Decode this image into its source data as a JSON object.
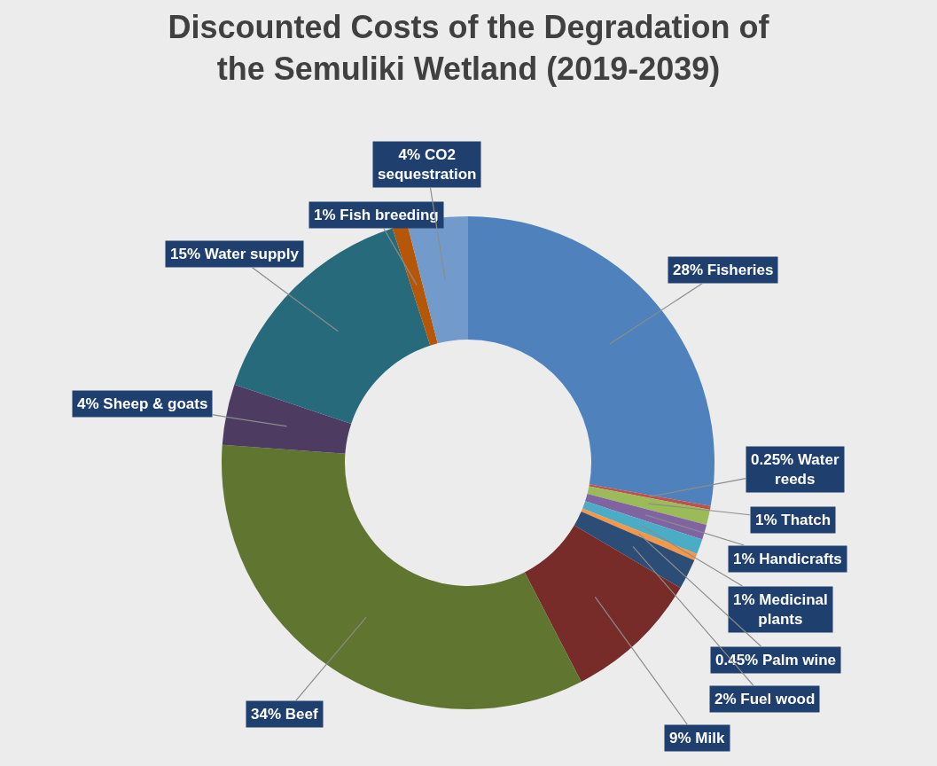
{
  "chart_data": {
    "type": "donut",
    "title": "Discounted Costs of the Degradation of the Semuliki Wetland (2019-2039)",
    "categories": [
      "Fisheries",
      "Water reeds",
      "Thatch",
      "Handicrafts",
      "Medicinal plants",
      "Palm wine",
      "Fuel wood",
      "Milk",
      "Beef",
      "Sheep & goats",
      "Water supply",
      "Fish breeding",
      "CO2 sequestration"
    ],
    "values": [
      28,
      0.25,
      1,
      1,
      1,
      0.45,
      2,
      9,
      34,
      4,
      15,
      1,
      4
    ],
    "colors": [
      "#4f81bd",
      "#c0504d",
      "#9bbb59",
      "#8064a2",
      "#4bacc6",
      "#f79646",
      "#2c4d75",
      "#772c2a",
      "#5f7530",
      "#4d3b62",
      "#276a7c",
      "#b65708",
      "#729aca"
    ],
    "value_labels": [
      "28%",
      "0.25%",
      "1%",
      "1%",
      "1%",
      "0.45%",
      "2%",
      "9%",
      "34%",
      "4%",
      "15%",
      "1%",
      "4%"
    ],
    "legend": false
  }
}
